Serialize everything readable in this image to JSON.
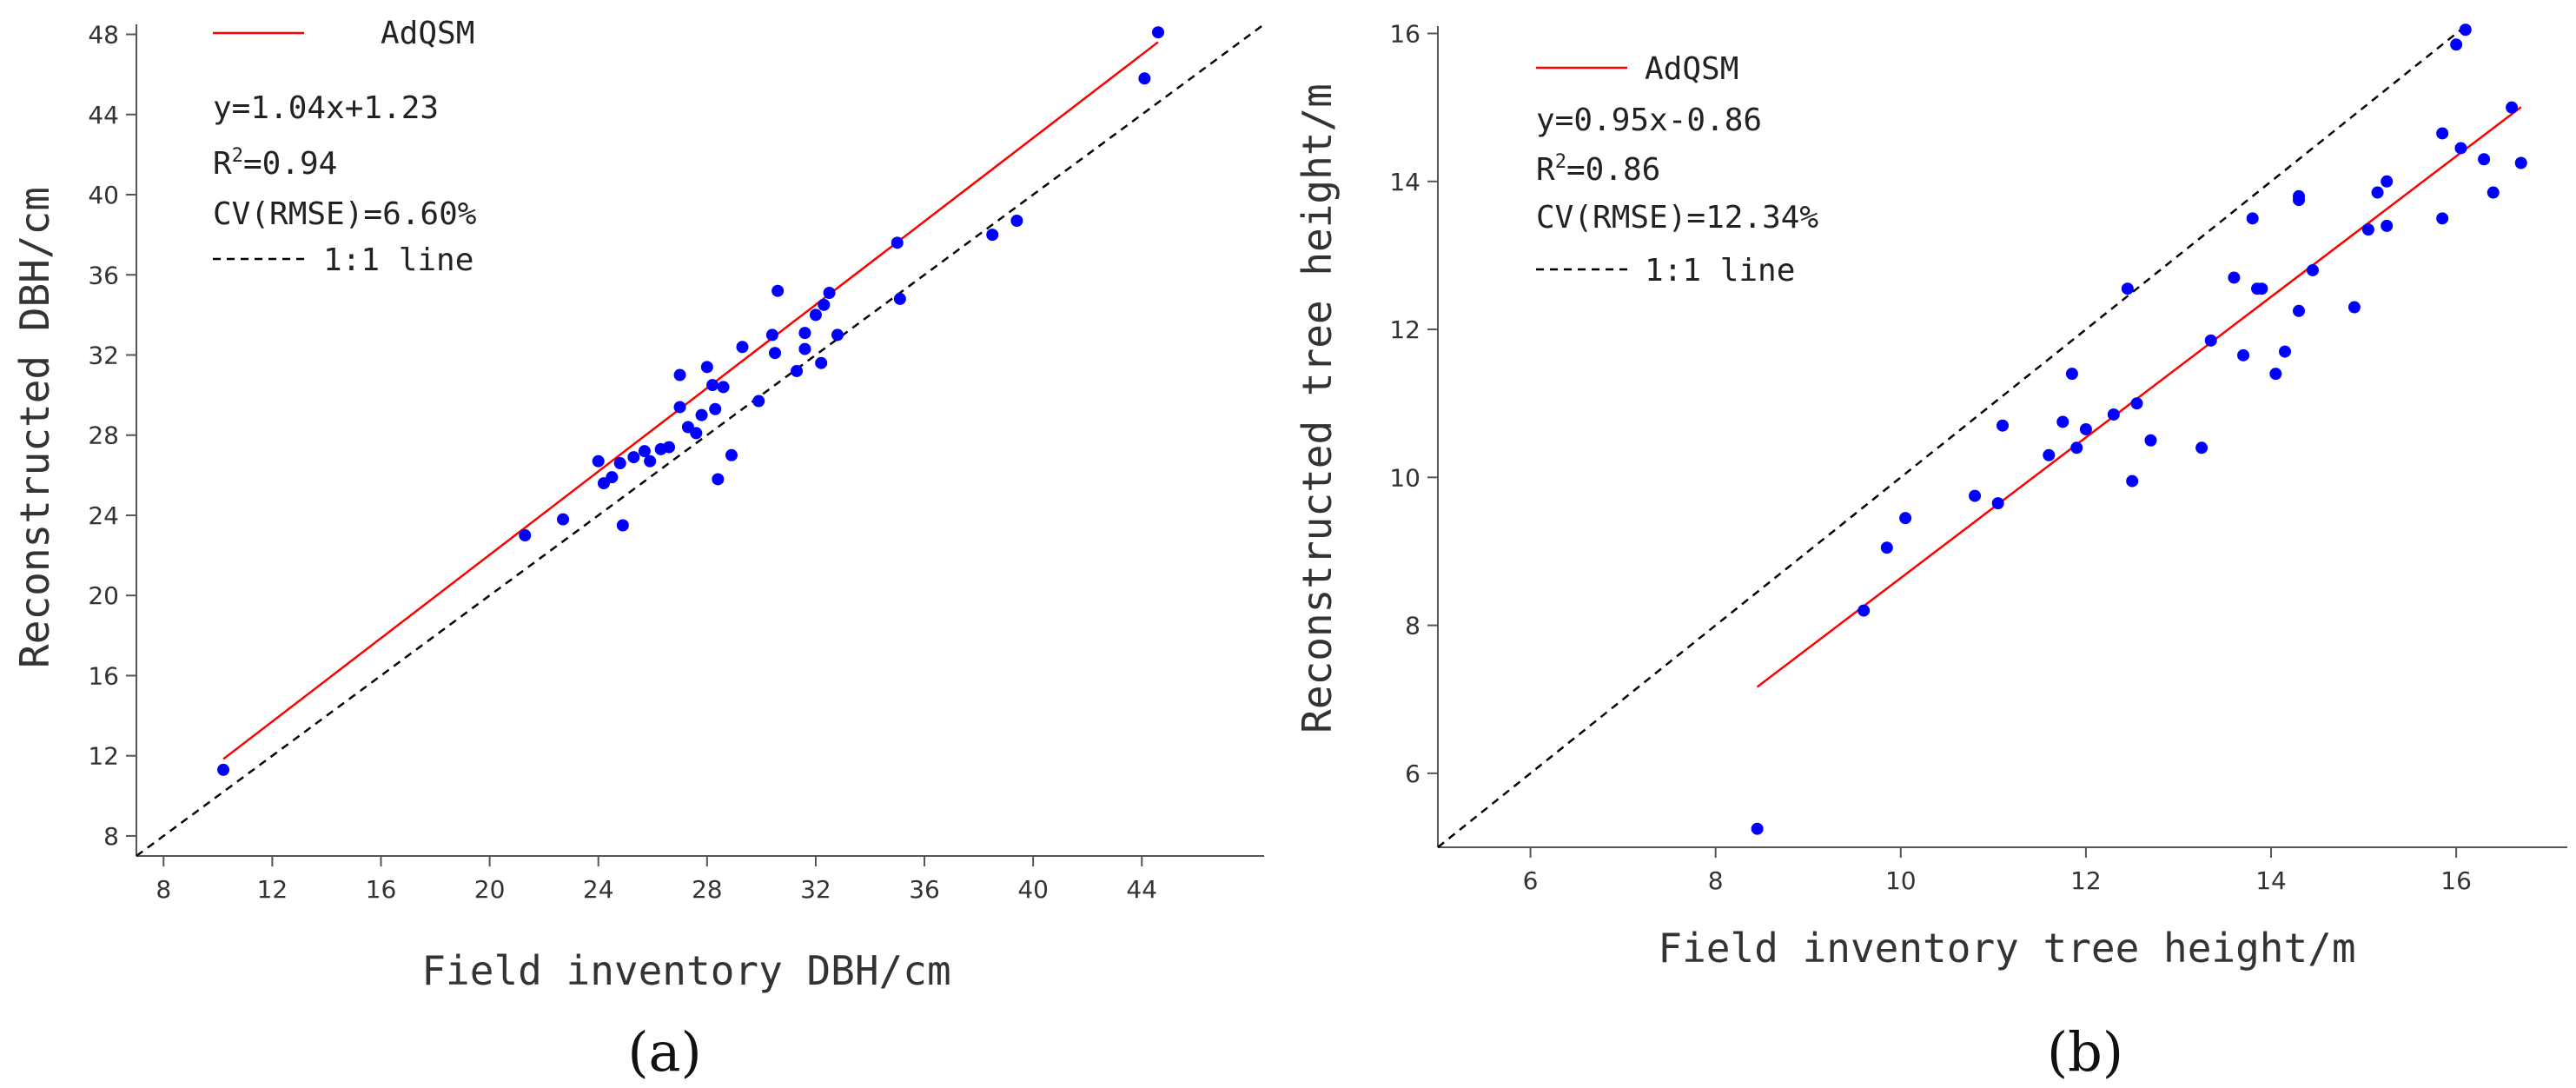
{
  "colors": {
    "points": "#0000ff",
    "fit_line": "#ff0000",
    "one_to_one": "#000000"
  },
  "chart_data": [
    {
      "id": "a",
      "type": "scatter",
      "caption": "(a)",
      "xlabel": "Field inventory DBH/cm",
      "ylabel": "Reconstructed DBH/cm",
      "xlim": [
        7,
        48.5
      ],
      "ylim": [
        7,
        48.5
      ],
      "xticks": [
        8,
        12,
        16,
        20,
        24,
        28,
        32,
        36,
        40,
        44
      ],
      "yticks": [
        8,
        12,
        16,
        20,
        24,
        28,
        32,
        36,
        40,
        44,
        48
      ],
      "legend": {
        "fit_label": "AdQSM",
        "equation": "y=1.04x+1.23",
        "r2_prefix": "R",
        "r2_sup": "2",
        "r2_value": "=0.94",
        "cv": "CV(RMSE)=6.60%",
        "one_to_one_label": "1:1 line"
      },
      "fit": {
        "slope": 1.04,
        "intercept": 1.23,
        "x_range": [
          10.2,
          44.6
        ]
      },
      "one_to_one": {
        "range": [
          7,
          48.5
        ]
      },
      "points": [
        [
          10.2,
          11.3
        ],
        [
          21.3,
          23.0
        ],
        [
          22.7,
          23.8
        ],
        [
          24.0,
          26.7
        ],
        [
          24.2,
          25.6
        ],
        [
          24.5,
          25.9
        ],
        [
          24.8,
          26.6
        ],
        [
          24.9,
          23.5
        ],
        [
          25.3,
          26.9
        ],
        [
          25.7,
          27.2
        ],
        [
          25.9,
          26.7
        ],
        [
          26.3,
          27.3
        ],
        [
          26.6,
          27.4
        ],
        [
          27.0,
          31.0
        ],
        [
          27.0,
          29.4
        ],
        [
          27.3,
          28.4
        ],
        [
          27.6,
          28.1
        ],
        [
          27.8,
          29.0
        ],
        [
          28.0,
          31.4
        ],
        [
          28.2,
          30.5
        ],
        [
          28.3,
          29.3
        ],
        [
          28.4,
          25.8
        ],
        [
          28.6,
          30.4
        ],
        [
          28.9,
          27.0
        ],
        [
          29.3,
          32.4
        ],
        [
          29.9,
          29.7
        ],
        [
          30.4,
          33.0
        ],
        [
          30.5,
          32.1
        ],
        [
          30.6,
          35.2
        ],
        [
          31.3,
          31.2
        ],
        [
          31.6,
          32.3
        ],
        [
          31.6,
          33.1
        ],
        [
          32.0,
          34.0
        ],
        [
          32.2,
          31.6
        ],
        [
          32.3,
          34.5
        ],
        [
          32.5,
          35.1
        ],
        [
          32.8,
          33.0
        ],
        [
          35.0,
          37.6
        ],
        [
          35.1,
          34.8
        ],
        [
          38.5,
          38.0
        ],
        [
          39.4,
          38.7
        ],
        [
          44.1,
          45.8
        ],
        [
          44.6,
          48.1
        ]
      ]
    },
    {
      "id": "b",
      "type": "scatter",
      "caption": "(b)",
      "xlabel": "Field inventory tree height/m",
      "ylabel": "Reconstructed tree height/m",
      "xlim": [
        5,
        17.2
      ],
      "ylim": [
        5,
        16.1
      ],
      "xticks": [
        6,
        8,
        10,
        12,
        14,
        16
      ],
      "yticks": [
        6,
        8,
        10,
        12,
        14,
        16
      ],
      "legend": {
        "fit_label": "AdQSM",
        "equation": "y=0.95x-0.86",
        "r2_prefix": "R",
        "r2_sup": "2",
        "r2_value": "=0.86",
        "cv": "CV(RMSE)=12.34%",
        "one_to_one_label": "1:1 line"
      },
      "fit": {
        "slope": 0.95,
        "intercept": -0.86,
        "x_range": [
          8.45,
          16.7
        ]
      },
      "one_to_one": {
        "range": [
          5,
          16.1
        ]
      },
      "points": [
        [
          8.45,
          5.25
        ],
        [
          9.6,
          8.2
        ],
        [
          9.85,
          9.05
        ],
        [
          10.05,
          9.45
        ],
        [
          10.8,
          9.75
        ],
        [
          11.05,
          9.65
        ],
        [
          11.1,
          10.7
        ],
        [
          11.6,
          10.3
        ],
        [
          11.75,
          10.75
        ],
        [
          11.85,
          11.4
        ],
        [
          11.9,
          10.4
        ],
        [
          12.0,
          10.65
        ],
        [
          12.3,
          10.85
        ],
        [
          12.45,
          12.55
        ],
        [
          12.5,
          9.95
        ],
        [
          12.55,
          11.0
        ],
        [
          12.7,
          10.5
        ],
        [
          13.25,
          10.4
        ],
        [
          13.35,
          11.85
        ],
        [
          13.6,
          12.7
        ],
        [
          13.7,
          11.65
        ],
        [
          13.8,
          13.5
        ],
        [
          13.85,
          12.55
        ],
        [
          13.9,
          12.55
        ],
        [
          14.05,
          11.4
        ],
        [
          14.15,
          11.7
        ],
        [
          14.3,
          13.8
        ],
        [
          14.3,
          13.75
        ],
        [
          14.3,
          12.25
        ],
        [
          14.45,
          12.8
        ],
        [
          14.9,
          12.3
        ],
        [
          15.05,
          13.35
        ],
        [
          15.15,
          13.85
        ],
        [
          15.25,
          14.0
        ],
        [
          15.25,
          13.4
        ],
        [
          15.85,
          14.65
        ],
        [
          15.85,
          13.5
        ],
        [
          16.0,
          15.85
        ],
        [
          16.05,
          14.45
        ],
        [
          16.1,
          16.05
        ],
        [
          16.3,
          14.3
        ],
        [
          16.4,
          13.85
        ],
        [
          16.6,
          15.0
        ],
        [
          16.7,
          14.25
        ]
      ]
    }
  ]
}
